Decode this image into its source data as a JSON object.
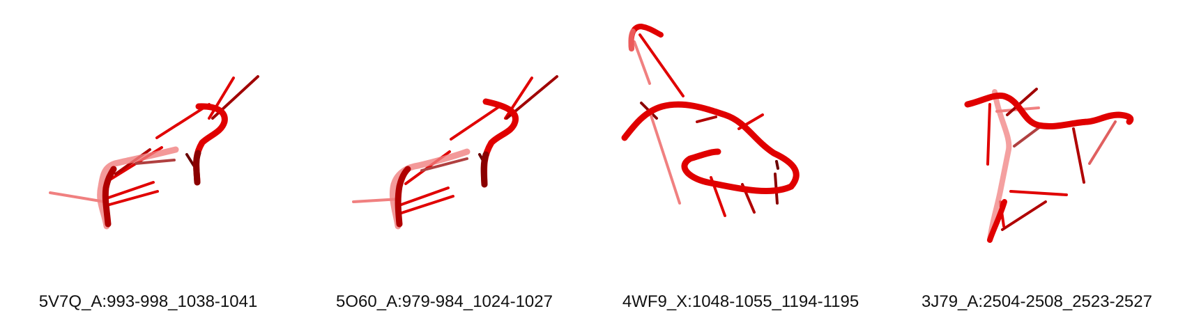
{
  "panels": [
    {
      "label": "5V7Q_A:993-998_1038-1041"
    },
    {
      "label": "5O60_A:979-984_1024-1027"
    },
    {
      "label": "4WF9_X:1048-1055_1194-1195"
    },
    {
      "label": "3J79_A:2504-2508_2523-2527"
    }
  ],
  "colors": {
    "backbone": "#e00000",
    "dark": "#8a0000",
    "faded": "#f08080"
  }
}
